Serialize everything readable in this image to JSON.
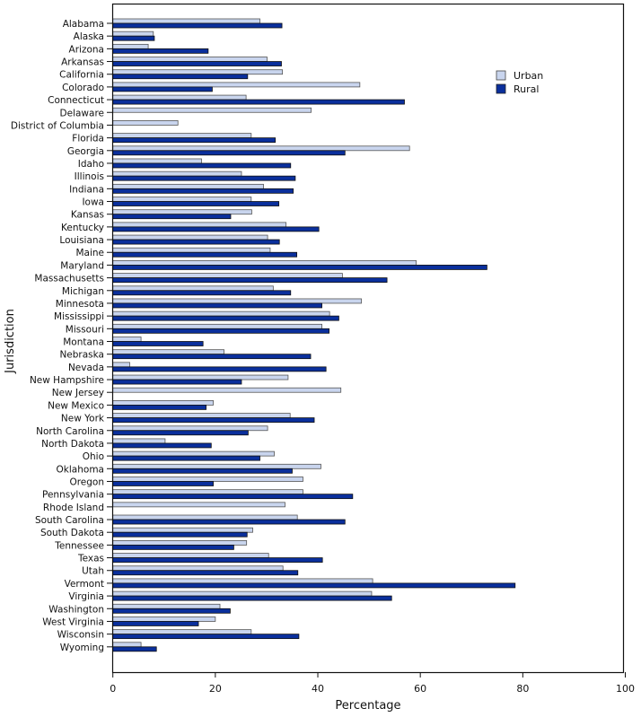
{
  "chart_data": {
    "type": "bar",
    "orientation": "horizontal",
    "title": "",
    "xlabel": "Percentage",
    "ylabel": "Jurisdiction",
    "xlim": [
      0,
      100
    ],
    "xticks": [
      0,
      20,
      40,
      60,
      80,
      100
    ],
    "grid": false,
    "legend_position": "top-right",
    "colors": {
      "Urban": "#c9d5ee",
      "Rural": "#0a2f9c"
    },
    "categories": [
      "Alabama",
      "Alaska",
      "Arizona",
      "Arkansas",
      "California",
      "Colorado",
      "Connecticut",
      "Delaware",
      "District of Columbia",
      "Florida",
      "Georgia",
      "Idaho",
      "Illinois",
      "Indiana",
      "Iowa",
      "Kansas",
      "Kentucky",
      "Louisiana",
      "Maine",
      "Maryland",
      "Massachusetts",
      "Michigan",
      "Minnesota",
      "Mississippi",
      "Missouri",
      "Montana",
      "Nebraska",
      "Nevada",
      "New Hampshire",
      "New Jersey",
      "New Mexico",
      "New York",
      "North Carolina",
      "North Dakota",
      "Ohio",
      "Oklahoma",
      "Oregon",
      "Pennsylvania",
      "Rhode Island",
      "South Carolina",
      "South Dakota",
      "Tennessee",
      "Texas",
      "Utah",
      "Vermont",
      "Virginia",
      "Washington",
      "West Virginia",
      "Wisconsin",
      "Wyoming"
    ],
    "series": [
      {
        "name": "Urban",
        "values": [
          28.7,
          7.9,
          6.9,
          30.1,
          33.1,
          48.2,
          26.0,
          38.7,
          12.7,
          27.0,
          57.9,
          17.3,
          25.1,
          29.4,
          27.0,
          27.1,
          33.8,
          30.2,
          30.7,
          59.2,
          44.8,
          31.3,
          48.5,
          42.3,
          40.8,
          5.5,
          21.7,
          3.3,
          34.2,
          44.5,
          19.6,
          34.6,
          30.2,
          10.2,
          31.5,
          40.6,
          37.1,
          37.1,
          33.6,
          36.0,
          27.3,
          26.1,
          30.4,
          33.2,
          50.7,
          50.5,
          20.9,
          20.0,
          27.0,
          5.5
        ]
      },
      {
        "name": "Rural",
        "values": [
          33.0,
          8.1,
          18.6,
          32.9,
          26.3,
          19.4,
          56.9,
          null,
          null,
          31.7,
          45.3,
          34.7,
          35.6,
          35.2,
          32.4,
          23.0,
          40.2,
          32.5,
          35.9,
          73.0,
          53.5,
          34.7,
          40.8,
          44.1,
          42.2,
          17.6,
          38.6,
          41.6,
          25.1,
          null,
          18.2,
          39.3,
          26.4,
          19.2,
          28.7,
          35.0,
          19.6,
          46.8,
          null,
          45.3,
          26.2,
          23.6,
          40.9,
          36.1,
          78.5,
          54.4,
          22.9,
          16.7,
          36.3,
          8.5
        ]
      }
    ]
  }
}
